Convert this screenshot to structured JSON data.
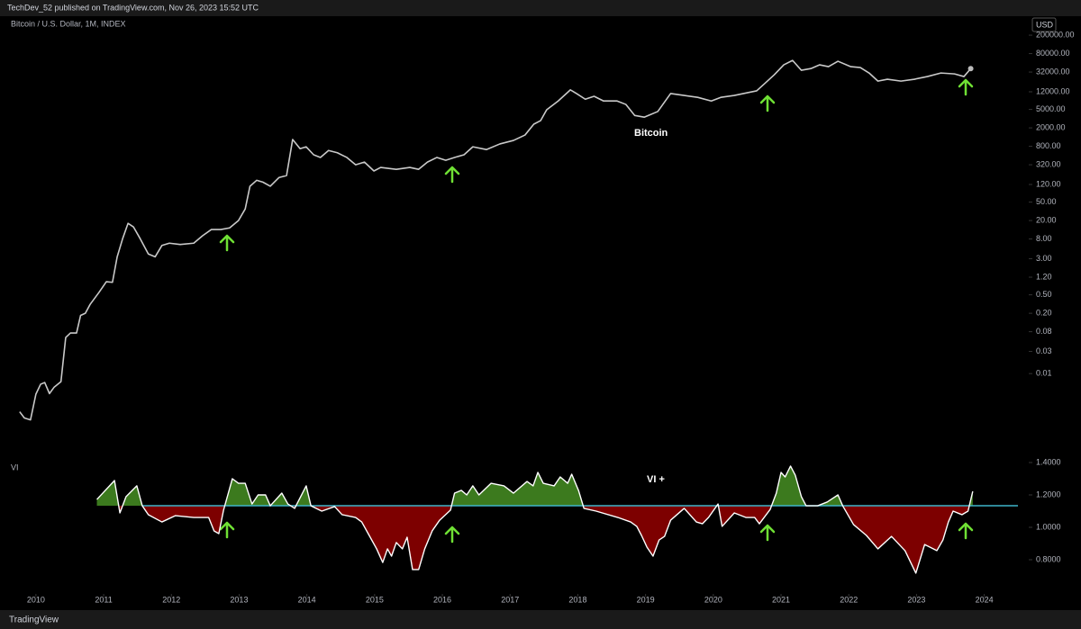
{
  "header": {
    "published": "TechDev_52 published on TradingView.com, Nov 26, 2023 15:52 UTC",
    "symbol": "Bitcoin / U.S. Dollar, 1M, INDEX",
    "currency": "USD",
    "footer": "TradingView"
  },
  "chart_data": [
    {
      "type": "line",
      "log": true,
      "annotation": "Bitcoin",
      "xlim": [
        2009.47,
        2024.63
      ],
      "ylim": [
        0.00018,
        300000
      ],
      "yticks": [
        {
          "value": 200000,
          "label": "200000.00"
        },
        {
          "value": 80000,
          "label": "80000.00"
        },
        {
          "value": 32000,
          "label": "32000.00"
        },
        {
          "value": 12000,
          "label": "12000.00"
        },
        {
          "value": 5000,
          "label": "5000.00"
        },
        {
          "value": 2000,
          "label": "2000.00"
        },
        {
          "value": 800,
          "label": "800.00"
        },
        {
          "value": 320,
          "label": "320.00"
        },
        {
          "value": 120,
          "label": "120.00"
        },
        {
          "value": 50,
          "label": "50.00"
        },
        {
          "value": 20,
          "label": "20.00"
        },
        {
          "value": 8,
          "label": "8.00"
        },
        {
          "value": 3,
          "label": "3.00"
        },
        {
          "value": 1.2,
          "label": "1.20"
        },
        {
          "value": 0.5,
          "label": "0.50"
        },
        {
          "value": 0.2,
          "label": "0.20"
        },
        {
          "value": 0.08,
          "label": "0.08"
        },
        {
          "value": 0.03,
          "label": "0.03"
        },
        {
          "value": 0.01,
          "label": "0.01"
        }
      ],
      "series": [
        {
          "color": "#c9c9c9",
          "x": [
            2009.76,
            2009.83,
            2009.92,
            2010.0,
            2010.07,
            2010.13,
            2010.2,
            2010.27,
            2010.37,
            2010.44,
            2010.51,
            2010.6,
            2010.66,
            2010.73,
            2010.8,
            2010.93,
            2011.04,
            2011.13,
            2011.2,
            2011.28,
            2011.36,
            2011.44,
            2011.54,
            2011.66,
            2011.76,
            2011.86,
            2011.97,
            2012.13,
            2012.33,
            2012.46,
            2012.59,
            2012.73,
            2012.86,
            2012.99,
            2013.09,
            2013.16,
            2013.26,
            2013.35,
            2013.46,
            2013.59,
            2013.7,
            2013.79,
            2013.9,
            2013.99,
            2014.1,
            2014.2,
            2014.32,
            2014.45,
            2014.59,
            2014.72,
            2014.85,
            2014.99,
            2015.09,
            2015.32,
            2015.52,
            2015.65,
            2015.78,
            2015.92,
            2016.05,
            2016.18,
            2016.32,
            2016.45,
            2016.65,
            2016.85,
            2017.05,
            2017.22,
            2017.35,
            2017.45,
            2017.54,
            2017.71,
            2017.89,
            2017.98,
            2018.11,
            2018.24,
            2018.38,
            2018.58,
            2018.71,
            2018.84,
            2018.98,
            2019.18,
            2019.37,
            2019.57,
            2019.77,
            2019.97,
            2020.11,
            2020.31,
            2020.51,
            2020.64,
            2020.77,
            2020.9,
            2021.04,
            2021.17,
            2021.3,
            2021.44,
            2021.57,
            2021.7,
            2021.84,
            2022.03,
            2022.17,
            2022.3,
            2022.43,
            2022.57,
            2022.77,
            2022.97,
            2023.16,
            2023.36,
            2023.56,
            2023.7,
            2023.8
          ],
          "values": [
            0.0015,
            0.0011,
            0.001,
            0.0036,
            0.0059,
            0.0064,
            0.0037,
            0.0051,
            0.0067,
            0.06,
            0.075,
            0.075,
            0.18,
            0.2,
            0.31,
            0.56,
            0.96,
            0.93,
            3.3,
            8.1,
            17.4,
            14.6,
            8.1,
            3.8,
            3.3,
            5.8,
            6.5,
            6.1,
            6.5,
            9.4,
            12.8,
            12.8,
            13.9,
            20,
            35.6,
            110,
            148,
            135,
            110,
            170,
            187,
            1120,
            710,
            780,
            525,
            460,
            650,
            580,
            460,
            320,
            365,
            235,
            280,
            255,
            280,
            255,
            365,
            460,
            400,
            460,
            525,
            780,
            680,
            900,
            1070,
            1400,
            2400,
            2860,
            4900,
            7600,
            13200,
            11000,
            8300,
            9600,
            7600,
            7600,
            6400,
            3700,
            3400,
            4500,
            11000,
            10000,
            9100,
            7600,
            9100,
            10000,
            11500,
            12600,
            18700,
            28000,
            45800,
            57000,
            35000,
            38000,
            45800,
            41800,
            54700,
            41800,
            40000,
            30500,
            20400,
            22400,
            20400,
            22400,
            25600,
            30500,
            29200,
            25600,
            38000
          ]
        }
      ]
    },
    {
      "type": "area_band",
      "annotation": "VI +",
      "label": "VI",
      "xlim": [
        2009.47,
        2024.63
      ],
      "ylim": [
        0.62,
        1.45
      ],
      "yticks": [
        {
          "value": 1.4,
          "label": "1.4000"
        },
        {
          "value": 1.2,
          "label": "1.2000"
        },
        {
          "value": 1.0,
          "label": "1.0000"
        },
        {
          "value": 0.8,
          "label": "0.8000"
        }
      ],
      "xticks": [
        2010,
        2011,
        2012,
        2013,
        2014,
        2015,
        2016,
        2017,
        2018,
        2019,
        2020,
        2021,
        2022,
        2023,
        2024
      ],
      "baseline": 1.133,
      "baseline_color": "#3fb6c9",
      "fill_above_color": "#3c7a1e",
      "fill_below_color": "#7d0000",
      "series": [
        {
          "color": "#ffffff",
          "x": [
            2010.9,
            2011.16,
            2011.24,
            2011.33,
            2011.49,
            2011.57,
            2011.66,
            2011.86,
            2012.06,
            2012.33,
            2012.55,
            2012.63,
            2012.7,
            2012.77,
            2012.9,
            2012.99,
            2013.09,
            2013.19,
            2013.28,
            2013.39,
            2013.46,
            2013.63,
            2013.72,
            2013.82,
            2013.99,
            2014.06,
            2014.22,
            2014.41,
            2014.52,
            2014.72,
            2014.81,
            2014.92,
            2015.03,
            2015.12,
            2015.19,
            2015.25,
            2015.32,
            2015.41,
            2015.48,
            2015.56,
            2015.65,
            2015.74,
            2015.85,
            2015.96,
            2016.12,
            2016.18,
            2016.28,
            2016.36,
            2016.45,
            2016.54,
            2016.72,
            2016.91,
            2017.05,
            2017.25,
            2017.34,
            2017.41,
            2017.49,
            2017.65,
            2017.74,
            2017.85,
            2017.91,
            2018.01,
            2018.09,
            2018.27,
            2018.59,
            2018.78,
            2018.87,
            2018.94,
            2019.02,
            2019.11,
            2019.2,
            2019.28,
            2019.37,
            2019.57,
            2019.75,
            2019.84,
            2019.93,
            2020.07,
            2020.13,
            2020.31,
            2020.48,
            2020.61,
            2020.68,
            2020.84,
            2020.93,
            2021.0,
            2021.06,
            2021.14,
            2021.21,
            2021.3,
            2021.37,
            2021.54,
            2021.68,
            2021.84,
            2021.91,
            2022.07,
            2022.26,
            2022.43,
            2022.63,
            2022.83,
            2022.99,
            2023.12,
            2023.3,
            2023.39,
            2023.47,
            2023.54,
            2023.67,
            2023.76,
            2023.83
          ],
          "values": [
            1.172,
            1.289,
            1.089,
            1.189,
            1.256,
            1.133,
            1.078,
            1.033,
            1.072,
            1.061,
            1.061,
            0.978,
            0.961,
            1.106,
            1.3,
            1.272,
            1.272,
            1.144,
            1.2,
            1.2,
            1.133,
            1.211,
            1.144,
            1.117,
            1.256,
            1.133,
            1.1,
            1.128,
            1.078,
            1.061,
            1.033,
            0.95,
            0.867,
            0.783,
            0.867,
            0.822,
            0.906,
            0.867,
            0.939,
            0.739,
            0.739,
            0.867,
            0.978,
            1.044,
            1.106,
            1.211,
            1.228,
            1.2,
            1.256,
            1.2,
            1.272,
            1.256,
            1.211,
            1.283,
            1.256,
            1.339,
            1.272,
            1.256,
            1.311,
            1.272,
            1.328,
            1.228,
            1.117,
            1.1,
            1.061,
            1.033,
            1.006,
            0.95,
            0.878,
            0.822,
            0.922,
            0.944,
            1.044,
            1.117,
            1.033,
            1.022,
            1.061,
            1.144,
            1.006,
            1.089,
            1.061,
            1.061,
            1.022,
            1.111,
            1.211,
            1.339,
            1.311,
            1.378,
            1.322,
            1.189,
            1.133,
            1.133,
            1.156,
            1.2,
            1.133,
            1.017,
            0.95,
            0.867,
            0.944,
            0.856,
            0.717,
            0.894,
            0.856,
            0.922,
            1.033,
            1.1,
            1.078,
            1.1,
            1.222
          ]
        }
      ]
    }
  ]
}
